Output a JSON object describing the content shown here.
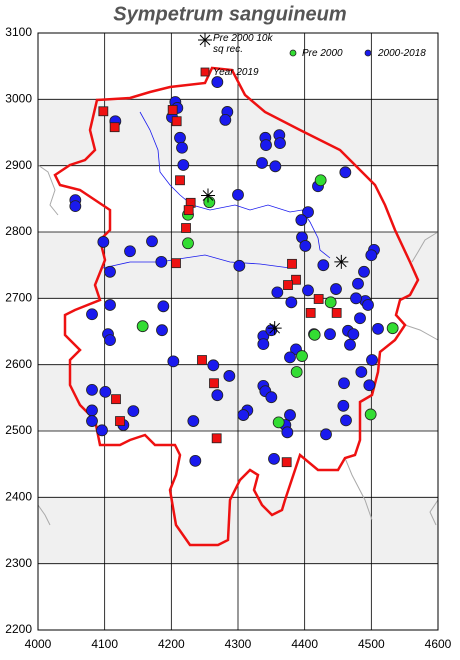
{
  "chart_data": {
    "type": "scatter",
    "title": "Sympetrum sanguineum",
    "xlim": [
      4000,
      4600
    ],
    "ylim": [
      2200,
      3100
    ],
    "xticks": [
      4000,
      4100,
      4200,
      4300,
      4400,
      4500,
      4600
    ],
    "yticks": [
      2200,
      2300,
      2400,
      2500,
      2600,
      2700,
      2800,
      2900,
      3000,
      3100
    ],
    "grid": true,
    "series": [
      {
        "name": "Pre 2000 10k sq rec.",
        "color": "#000000",
        "marker": "asterisk",
        "x": [
          4255,
          4455,
          4355
        ],
        "y": [
          2855,
          2755,
          2655
        ]
      },
      {
        "name": "Pre 2000",
        "color": "#33dd33",
        "marker": "circle",
        "x": [
          4257,
          4225,
          4225,
          4157,
          4424,
          4439,
          4396,
          4388,
          4415,
          4361,
          4499,
          4532
        ],
        "y": [
          2845,
          2826,
          2783,
          2658,
          2878,
          2694,
          2613,
          2589,
          2645,
          2513,
          2525,
          2655
        ]
      },
      {
        "name": "2000-2018",
        "color": "#1a1aee",
        "marker": "circle",
        "x": [
          4269,
          4206,
          4209,
          4201,
          4284,
          4281,
          4116,
          4213,
          4216,
          4218,
          4341,
          4342,
          4362,
          4336,
          4356,
          4363,
          4300,
          4056,
          4056,
          4420,
          4461,
          4405,
          4171,
          4138,
          4185,
          4108,
          4098,
          4302,
          4396,
          4401,
          4504,
          4500,
          4489,
          4428,
          4081,
          4108,
          4105,
          4108,
          4188,
          4186,
          4203,
          4263,
          4269,
          4287,
          4338,
          4338,
          4350,
          4380,
          4387,
          4378,
          4414,
          4438,
          4468,
          4465,
          4491,
          4495,
          4477,
          4483,
          4501,
          4510,
          4497,
          4459,
          4458,
          4432,
          4462,
          4485,
          4081,
          4101,
          4081,
          4081,
          4096,
          4128,
          4143,
          4233,
          4236,
          4314,
          4308,
          4338,
          4341,
          4350,
          4378,
          4371,
          4374,
          4354,
          4480,
          4395,
          4405,
          4473,
          4447,
          4359
        ],
        "y": [
          3026,
          2996,
          2987,
          2973,
          2981,
          2969,
          2967,
          2942,
          2927,
          2901,
          2942,
          2931,
          2946,
          2904,
          2899,
          2934,
          2856,
          2848,
          2839,
          2869,
          2890,
          2830,
          2786,
          2771,
          2755,
          2740,
          2785,
          2749,
          2792,
          2779,
          2773,
          2765,
          2740,
          2750,
          2676,
          2690,
          2646,
          2637,
          2688,
          2652,
          2605,
          2599,
          2554,
          2583,
          2643,
          2631,
          2652,
          2694,
          2623,
          2611,
          2646,
          2646,
          2630,
          2651,
          2696,
          2690,
          2700,
          2670,
          2607,
          2654,
          2569,
          2572,
          2538,
          2495,
          2516,
          2589,
          2562,
          2559,
          2531,
          2515,
          2501,
          2509,
          2530,
          2515,
          2455,
          2531,
          2524,
          2568,
          2560,
          2551,
          2524,
          2509,
          2498,
          2458,
          2722,
          2818,
          2712,
          2646,
          2714,
          2709
        ]
      },
      {
        "name": "Year 2019",
        "color": "#ee1111",
        "marker": "square",
        "x": [
          4098,
          4115,
          4202,
          4208,
          4213,
          4229,
          4226,
          4222,
          4207,
          4246,
          4264,
          4268,
          4117,
          4123,
          4381,
          4387,
          4375,
          4421,
          4409,
          4448,
          4373
        ],
        "y": [
          2982,
          2958,
          2984,
          2967,
          2878,
          2844,
          2833,
          2806,
          2753,
          2607,
          2572,
          2489,
          2548,
          2515,
          2752,
          2728,
          2720,
          2699,
          2678,
          2678,
          2453
        ]
      }
    ]
  }
}
